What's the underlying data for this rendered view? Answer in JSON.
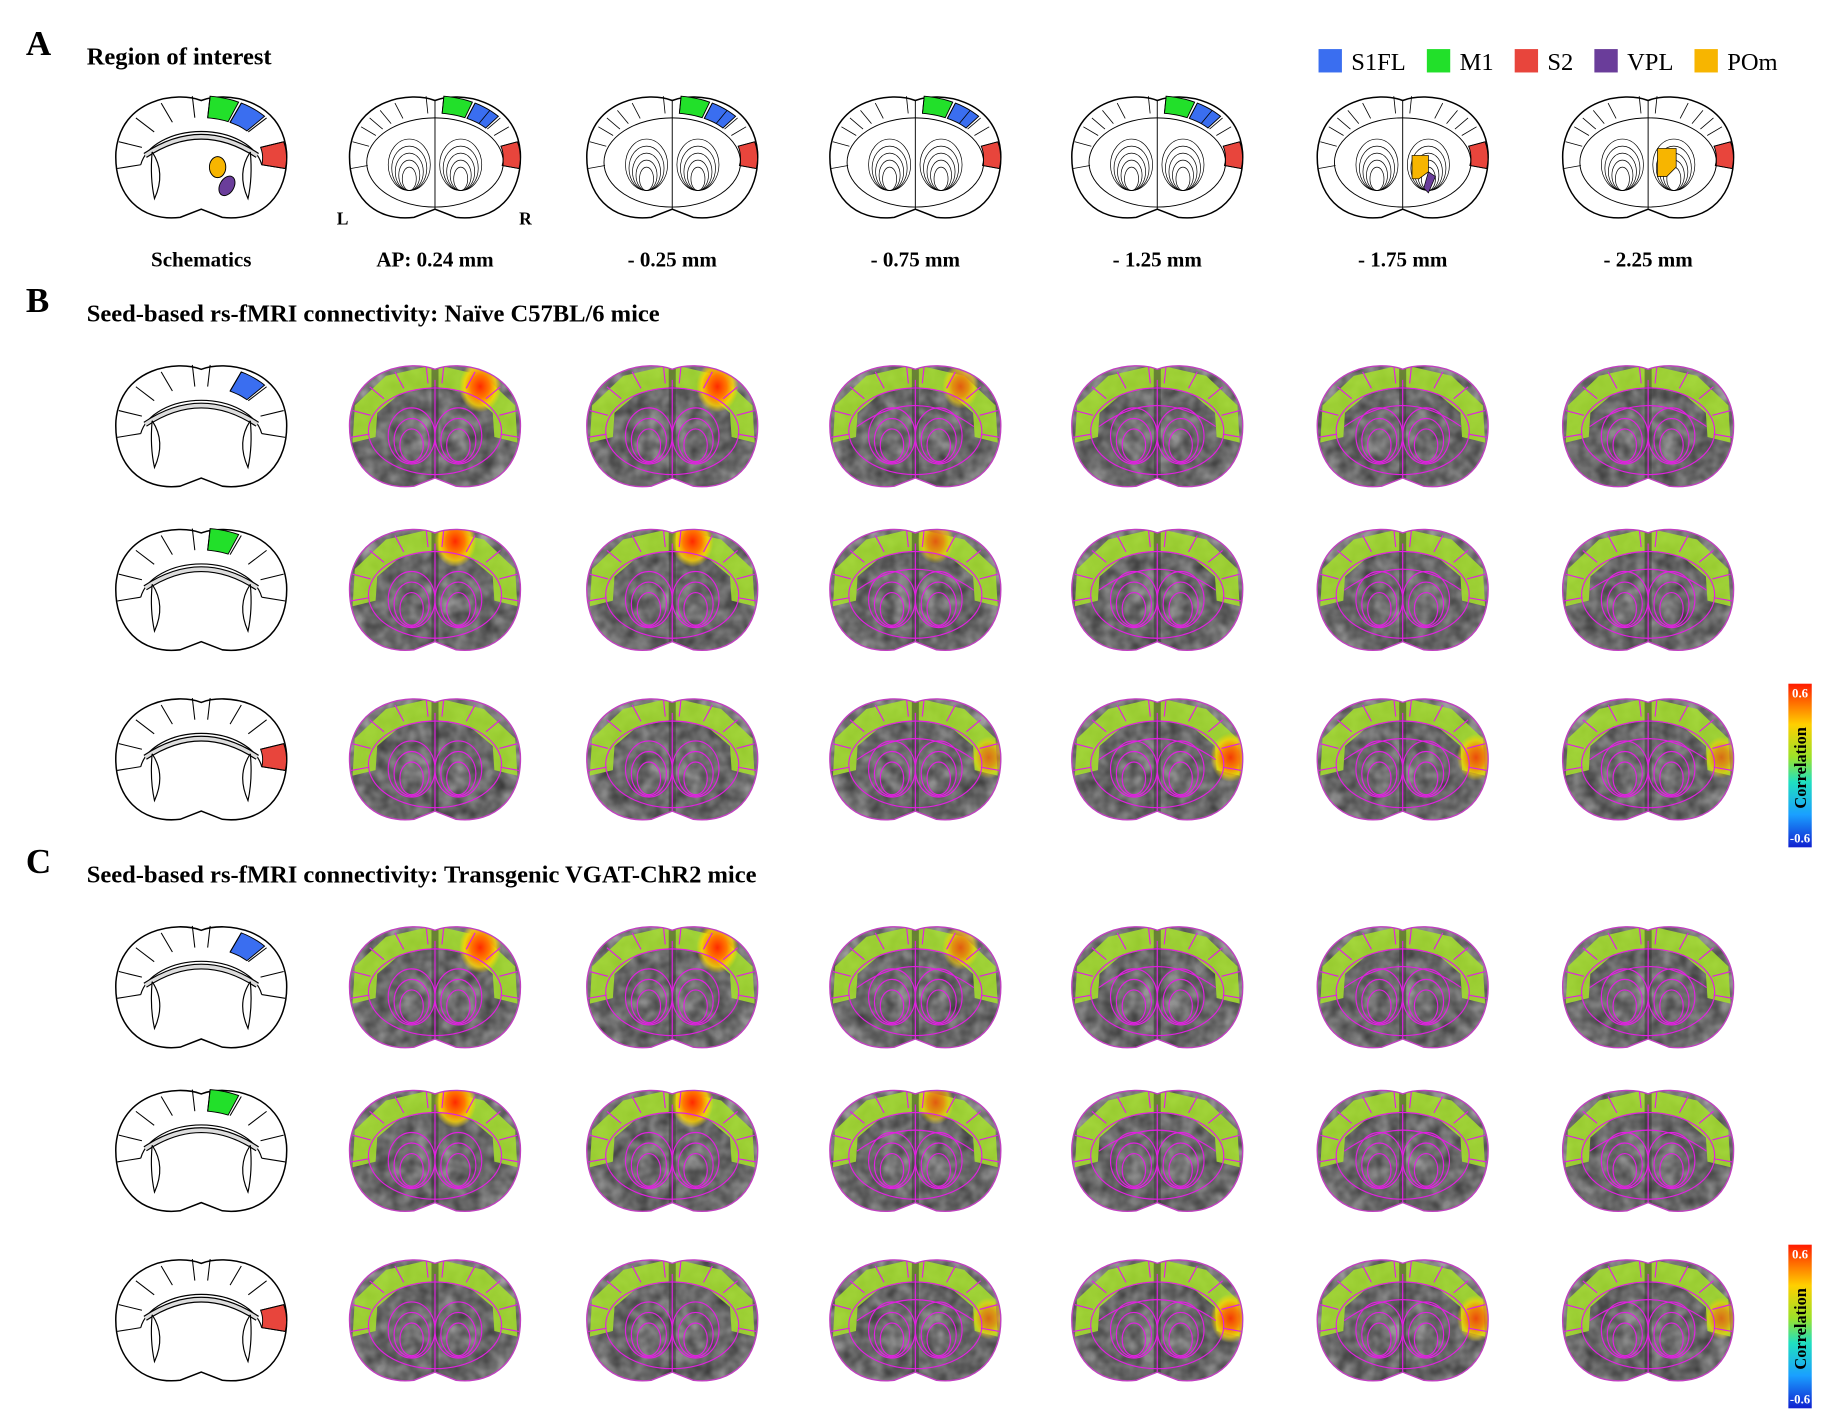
{
  "panels": [
    {
      "label": "A",
      "title": "Region of interest"
    },
    {
      "label": "B",
      "title": "Seed-based rs-fMRI connectivity: Naïve C57BL/6 mice"
    },
    {
      "label": "C",
      "title": "Seed-based rs-fMRI connectivity: Transgenic VGAT-ChR2 mice"
    }
  ],
  "legend": [
    {
      "name": "S1FL",
      "color": "#3a6ef0"
    },
    {
      "name": "M1",
      "color": "#22e02a"
    },
    {
      "name": "S2",
      "color": "#e8453c"
    },
    {
      "name": "VPL",
      "color": "#6a3d9a"
    },
    {
      "name": "POm",
      "color": "#f7b500"
    }
  ],
  "sections": [
    "Schematics",
    "AP: 0.24 mm",
    "- 0.25 mm",
    "- 0.75 mm",
    "- 1.25 mm",
    "- 1.75 mm",
    "- 2.25 mm"
  ],
  "orientation": {
    "left": "L",
    "right": "R"
  },
  "colorbar": {
    "title": "Correlation",
    "max": 0.6,
    "min": -0.6
  }
}
